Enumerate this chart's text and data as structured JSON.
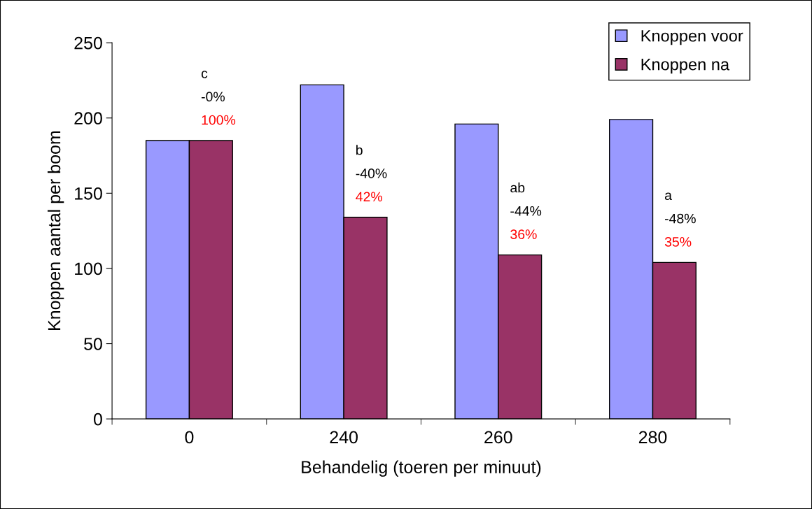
{
  "chart_data": {
    "type": "bar",
    "xlabel": "Behandelig (toeren per minuut)",
    "ylabel": "Knoppen aantal per boom",
    "categories": [
      "0",
      "240",
      "260",
      "280"
    ],
    "series": [
      {
        "name": "Knoppen voor",
        "color": "#9999ff",
        "values": [
          185,
          222,
          196,
          199
        ]
      },
      {
        "name": "Knoppen na",
        "color": "#993366",
        "values": [
          185,
          134,
          109,
          104
        ]
      }
    ],
    "ylim": [
      0,
      250
    ],
    "yticks": [
      0,
      50,
      100,
      150,
      200,
      250
    ],
    "grid": false,
    "legend": "top right",
    "annotations": [
      "c",
      "-0%",
      {
        "text": "100%",
        "x": "0",
        "y": 185
      },
      "b",
      "-40%",
      {
        "text": "42%",
        "x": "240",
        "y": 134
      },
      "ab",
      "-44%",
      {
        "text": "36%",
        "x": "260",
        "y": 109
      },
      "a",
      "-48%",
      {
        "text": "35%",
        "x": "280",
        "y": 104
      }
    ]
  }
}
